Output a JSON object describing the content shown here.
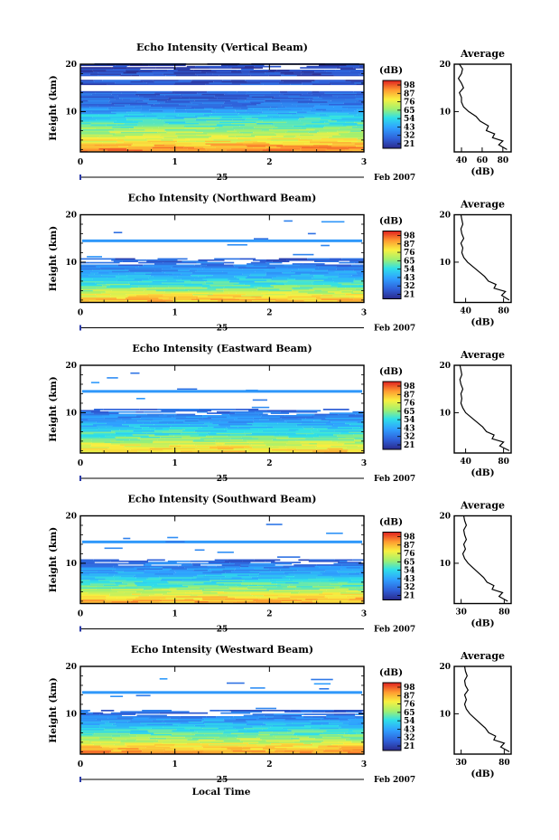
{
  "figure": {
    "xlabel": "Local Time",
    "date_labels": {
      "day": "25",
      "month_year": "Feb 2007"
    },
    "colorbar": {
      "unit_label": "(dB)",
      "ticks": [
        "98",
        "87",
        "76",
        "65",
        "54",
        "43",
        "32",
        "21"
      ]
    },
    "average_title": "Average",
    "average_xlabel": "(dB)",
    "height_label": "Height (km)"
  },
  "chart_data": [
    {
      "type": "heatmap",
      "title": "Echo Intensity (Vertical Beam)",
      "xlabel": "",
      "ylabel": "Height (km)",
      "x_ticks": [
        "0",
        "1",
        "2",
        "3"
      ],
      "y_ticks": [
        "10",
        "20"
      ],
      "xlim": [
        0,
        3
      ],
      "ylim": [
        1.5,
        20
      ],
      "colorbar_ticks": [
        "98",
        "87",
        "76",
        "65",
        "54",
        "43",
        "32",
        "21"
      ],
      "value_range": [
        21,
        98
      ],
      "echo_top_km": 20,
      "clear_gaps_km": [
        [
          16.5,
          17.5
        ],
        [
          14.2,
          15.4
        ]
      ],
      "profile_by_height": [
        {
          "h": 2,
          "db": 88
        },
        {
          "h": 3,
          "db": 82
        },
        {
          "h": 4,
          "db": 74
        },
        {
          "h": 5,
          "db": 70
        },
        {
          "h": 6,
          "db": 66
        },
        {
          "h": 7,
          "db": 60
        },
        {
          "h": 8,
          "db": 57
        },
        {
          "h": 9,
          "db": 52
        },
        {
          "h": 10,
          "db": 44
        },
        {
          "h": 11,
          "db": 38
        },
        {
          "h": 12,
          "db": 34
        },
        {
          "h": 14,
          "db": 32
        },
        {
          "h": 16,
          "db": 30
        },
        {
          "h": 18,
          "db": 28
        },
        {
          "h": 20,
          "db": 26
        }
      ],
      "average": {
        "title": "Average",
        "xlabel": "(dB)",
        "x_ticks": [
          "40",
          "60",
          "80"
        ],
        "xlim": [
          33,
          88
        ],
        "y_ticks": [
          "10",
          "20"
        ],
        "ylim": [
          1.5,
          20
        ],
        "profile": [
          {
            "h": 2,
            "db": 84
          },
          {
            "h": 3,
            "db": 76
          },
          {
            "h": 3.8,
            "db": 80
          },
          {
            "h": 4.5,
            "db": 70
          },
          {
            "h": 5.3,
            "db": 72
          },
          {
            "h": 6,
            "db": 64
          },
          {
            "h": 7,
            "db": 66
          },
          {
            "h": 8,
            "db": 58
          },
          {
            "h": 9,
            "db": 54
          },
          {
            "h": 10,
            "db": 47
          },
          {
            "h": 11,
            "db": 42
          },
          {
            "h": 12,
            "db": 40
          },
          {
            "h": 13,
            "db": 40
          },
          {
            "h": 14,
            "db": 38
          },
          {
            "h": 15,
            "db": 42
          },
          {
            "h": 16,
            "db": 40
          },
          {
            "h": 17,
            "db": 37
          },
          {
            "h": 18,
            "db": 40
          },
          {
            "h": 19,
            "db": 41
          },
          {
            "h": 20,
            "db": 38
          }
        ]
      }
    },
    {
      "type": "heatmap",
      "title": "Echo Intensity (Northward Beam)",
      "xlabel": "",
      "ylabel": "Height (km)",
      "x_ticks": [
        "0",
        "1",
        "2",
        "3"
      ],
      "y_ticks": [
        "10",
        "20"
      ],
      "xlim": [
        0,
        3
      ],
      "ylim": [
        1.5,
        20
      ],
      "colorbar_ticks": [
        "98",
        "87",
        "76",
        "65",
        "54",
        "43",
        "32",
        "21"
      ],
      "value_range": [
        21,
        98
      ],
      "echo_top_km": 10.5,
      "upper_layer_km": 14.5,
      "profile_by_height": [
        {
          "h": 2,
          "db": 82
        },
        {
          "h": 3,
          "db": 76
        },
        {
          "h": 4,
          "db": 66
        },
        {
          "h": 5,
          "db": 60
        },
        {
          "h": 6,
          "db": 54
        },
        {
          "h": 7,
          "db": 48
        },
        {
          "h": 8,
          "db": 42
        },
        {
          "h": 9,
          "db": 38
        },
        {
          "h": 10,
          "db": 34
        },
        {
          "h": 10.5,
          "db": 32
        }
      ],
      "average": {
        "title": "Average",
        "xlabel": "(dB)",
        "x_ticks": [
          "40",
          "80"
        ],
        "xlim": [
          28,
          88
        ],
        "y_ticks": [
          "10",
          "20"
        ],
        "ylim": [
          1.5,
          20
        ],
        "profile": [
          {
            "h": 2,
            "db": 86
          },
          {
            "h": 3,
            "db": 78
          },
          {
            "h": 3.8,
            "db": 82
          },
          {
            "h": 4.5,
            "db": 70
          },
          {
            "h": 5.3,
            "db": 72
          },
          {
            "h": 6,
            "db": 64
          },
          {
            "h": 7,
            "db": 60
          },
          {
            "h": 8,
            "db": 54
          },
          {
            "h": 9,
            "db": 48
          },
          {
            "h": 10,
            "db": 42
          },
          {
            "h": 11,
            "db": 38
          },
          {
            "h": 12,
            "db": 36
          },
          {
            "h": 13,
            "db": 37
          },
          {
            "h": 14,
            "db": 35
          },
          {
            "h": 15,
            "db": 38
          },
          {
            "h": 16,
            "db": 36
          },
          {
            "h": 17,
            "db": 35
          },
          {
            "h": 18,
            "db": 37
          },
          {
            "h": 19,
            "db": 36
          },
          {
            "h": 20,
            "db": 35
          }
        ]
      }
    },
    {
      "type": "heatmap",
      "title": "Echo Intensity (Eastward Beam)",
      "xlabel": "",
      "ylabel": "Height (km)",
      "x_ticks": [
        "0",
        "1",
        "2",
        "3"
      ],
      "y_ticks": [
        "10",
        "20"
      ],
      "xlim": [
        0,
        3
      ],
      "ylim": [
        1.5,
        20
      ],
      "colorbar_ticks": [
        "98",
        "87",
        "76",
        "65",
        "54",
        "43",
        "32",
        "21"
      ],
      "value_range": [
        21,
        98
      ],
      "echo_top_km": 10.5,
      "upper_layer_km": 14.5,
      "profile_by_height": [
        {
          "h": 2,
          "db": 80
        },
        {
          "h": 3,
          "db": 74
        },
        {
          "h": 4,
          "db": 66
        },
        {
          "h": 5,
          "db": 60
        },
        {
          "h": 6,
          "db": 56
        },
        {
          "h": 7,
          "db": 50
        },
        {
          "h": 8,
          "db": 44
        },
        {
          "h": 9,
          "db": 40
        },
        {
          "h": 10,
          "db": 36
        },
        {
          "h": 10.5,
          "db": 33
        }
      ],
      "average": {
        "title": "Average",
        "xlabel": "(dB)",
        "x_ticks": [
          "40",
          "80"
        ],
        "xlim": [
          28,
          88
        ],
        "y_ticks": [
          "10",
          "20"
        ],
        "ylim": [
          1.5,
          20
        ],
        "profile": [
          {
            "h": 2,
            "db": 86
          },
          {
            "h": 3,
            "db": 76
          },
          {
            "h": 3.8,
            "db": 80
          },
          {
            "h": 4.5,
            "db": 68
          },
          {
            "h": 5.3,
            "db": 70
          },
          {
            "h": 6,
            "db": 62
          },
          {
            "h": 7,
            "db": 58
          },
          {
            "h": 8,
            "db": 52
          },
          {
            "h": 9,
            "db": 46
          },
          {
            "h": 10,
            "db": 40
          },
          {
            "h": 11,
            "db": 37
          },
          {
            "h": 12,
            "db": 35
          },
          {
            "h": 13,
            "db": 36
          },
          {
            "h": 14,
            "db": 35
          },
          {
            "h": 15,
            "db": 37
          },
          {
            "h": 16,
            "db": 35
          },
          {
            "h": 17,
            "db": 34
          },
          {
            "h": 18,
            "db": 36
          },
          {
            "h": 19,
            "db": 35
          },
          {
            "h": 20,
            "db": 34
          }
        ]
      }
    },
    {
      "type": "heatmap",
      "title": "Echo Intensity (Southward Beam)",
      "xlabel": "",
      "ylabel": "Height (km)",
      "x_ticks": [
        "0",
        "1",
        "2",
        "3"
      ],
      "y_ticks": [
        "10",
        "20"
      ],
      "xlim": [
        0,
        3
      ],
      "ylim": [
        1.5,
        20
      ],
      "colorbar_ticks": [
        "98",
        "87",
        "76",
        "65",
        "54",
        "43",
        "32",
        "21"
      ],
      "value_range": [
        21,
        98
      ],
      "echo_top_km": 10.5,
      "upper_layer_km": 14.5,
      "profile_by_height": [
        {
          "h": 2,
          "db": 84
        },
        {
          "h": 3,
          "db": 78
        },
        {
          "h": 4,
          "db": 68
        },
        {
          "h": 5,
          "db": 62
        },
        {
          "h": 6,
          "db": 56
        },
        {
          "h": 7,
          "db": 50
        },
        {
          "h": 8,
          "db": 44
        },
        {
          "h": 9,
          "db": 40
        },
        {
          "h": 10,
          "db": 36
        },
        {
          "h": 10.5,
          "db": 33
        }
      ],
      "average": {
        "title": "Average",
        "xlabel": "(dB)",
        "x_ticks": [
          "30",
          "80"
        ],
        "xlim": [
          22,
          88
        ],
        "y_ticks": [
          "10",
          "20"
        ],
        "ylim": [
          1.5,
          20
        ],
        "profile": [
          {
            "h": 2,
            "db": 84
          },
          {
            "h": 3,
            "db": 74
          },
          {
            "h": 3.8,
            "db": 78
          },
          {
            "h": 4.5,
            "db": 66
          },
          {
            "h": 5.3,
            "db": 68
          },
          {
            "h": 6,
            "db": 60
          },
          {
            "h": 7,
            "db": 56
          },
          {
            "h": 8,
            "db": 50
          },
          {
            "h": 9,
            "db": 44
          },
          {
            "h": 10,
            "db": 38
          },
          {
            "h": 11,
            "db": 34
          },
          {
            "h": 12,
            "db": 32
          },
          {
            "h": 13,
            "db": 35
          },
          {
            "h": 14,
            "db": 33
          },
          {
            "h": 15,
            "db": 36
          },
          {
            "h": 16,
            "db": 34
          },
          {
            "h": 17,
            "db": 33
          },
          {
            "h": 18,
            "db": 36
          },
          {
            "h": 19,
            "db": 34
          },
          {
            "h": 20,
            "db": 33
          }
        ]
      }
    },
    {
      "type": "heatmap",
      "title": "Echo Intensity (Westward Beam)",
      "xlabel": "Local Time",
      "ylabel": "Height (km)",
      "x_ticks": [
        "0",
        "1",
        "2",
        "3"
      ],
      "y_ticks": [
        "10",
        "20"
      ],
      "xlim": [
        0,
        3
      ],
      "ylim": [
        1.5,
        20
      ],
      "colorbar_ticks": [
        "98",
        "87",
        "76",
        "65",
        "54",
        "43",
        "32",
        "21"
      ],
      "value_range": [
        21,
        98
      ],
      "echo_top_km": 10.5,
      "upper_layer_km": 14.5,
      "profile_by_height": [
        {
          "h": 2,
          "db": 86
        },
        {
          "h": 3,
          "db": 80
        },
        {
          "h": 4,
          "db": 70
        },
        {
          "h": 5,
          "db": 64
        },
        {
          "h": 6,
          "db": 58
        },
        {
          "h": 7,
          "db": 52
        },
        {
          "h": 8,
          "db": 46
        },
        {
          "h": 9,
          "db": 40
        },
        {
          "h": 10,
          "db": 36
        },
        {
          "h": 10.5,
          "db": 33
        }
      ],
      "average": {
        "title": "Average",
        "xlabel": "(dB)",
        "x_ticks": [
          "30",
          "80"
        ],
        "xlim": [
          22,
          88
        ],
        "y_ticks": [
          "10",
          "20"
        ],
        "ylim": [
          1.5,
          20
        ],
        "profile": [
          {
            "h": 2,
            "db": 86
          },
          {
            "h": 3,
            "db": 76
          },
          {
            "h": 3.8,
            "db": 80
          },
          {
            "h": 4.5,
            "db": 68
          },
          {
            "h": 5.3,
            "db": 70
          },
          {
            "h": 6,
            "db": 62
          },
          {
            "h": 7,
            "db": 58
          },
          {
            "h": 8,
            "db": 52
          },
          {
            "h": 9,
            "db": 46
          },
          {
            "h": 10,
            "db": 40
          },
          {
            "h": 11,
            "db": 36
          },
          {
            "h": 12,
            "db": 34
          },
          {
            "h": 13,
            "db": 36
          },
          {
            "h": 14,
            "db": 34
          },
          {
            "h": 15,
            "db": 38
          },
          {
            "h": 16,
            "db": 35
          },
          {
            "h": 17,
            "db": 34
          },
          {
            "h": 18,
            "db": 37
          },
          {
            "h": 19,
            "db": 35
          },
          {
            "h": 20,
            "db": 34
          }
        ]
      }
    }
  ]
}
